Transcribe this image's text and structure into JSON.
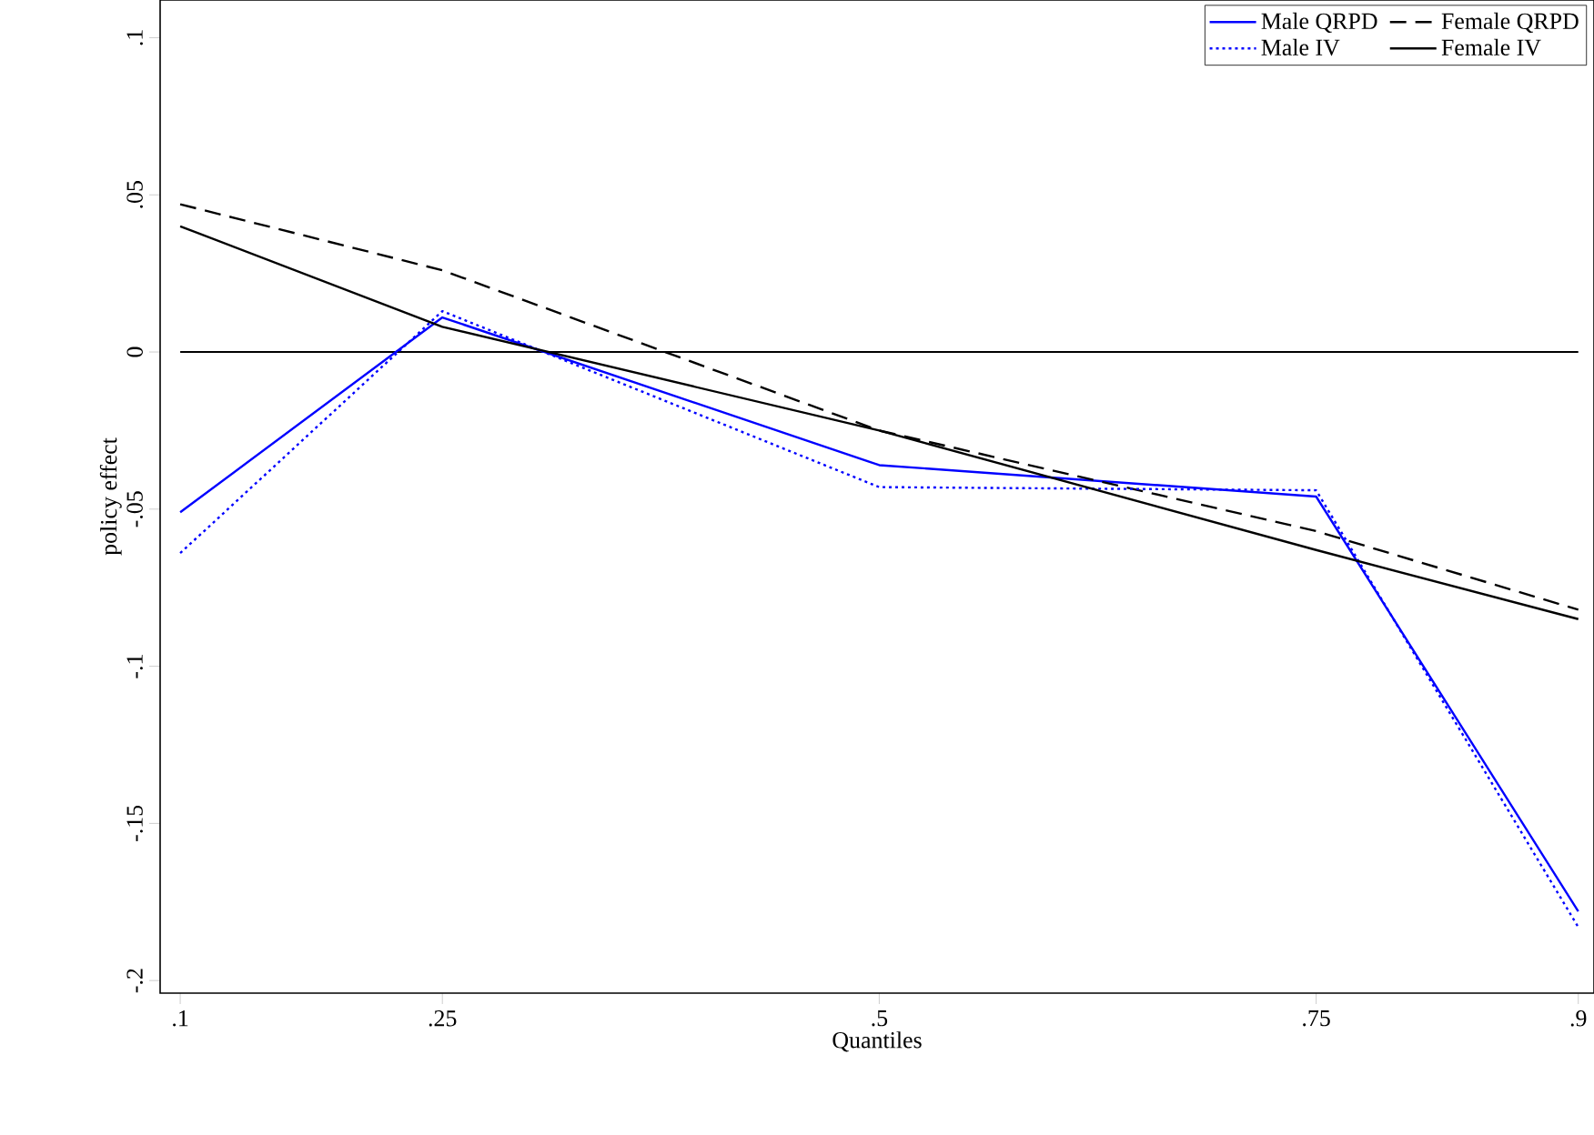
{
  "chart_data": {
    "type": "line",
    "xlabel": "Quantiles",
    "ylabel": "policy effect",
    "xlim": [
      0.0885,
      0.909
    ],
    "ylim": [
      -0.204,
      0.112
    ],
    "xticks": [
      {
        "value": 0.1,
        "label": ".1"
      },
      {
        "value": 0.25,
        "label": ".25"
      },
      {
        "value": 0.5,
        "label": ".5"
      },
      {
        "value": 0.75,
        "label": ".75"
      },
      {
        "value": 0.9,
        "label": ".9"
      }
    ],
    "yticks": [
      {
        "value": -0.2,
        "label": "-.2"
      },
      {
        "value": -0.15,
        "label": "-.15"
      },
      {
        "value": -0.1,
        "label": "-.1"
      },
      {
        "value": -0.05,
        "label": "-.05"
      },
      {
        "value": 0,
        "label": "0"
      },
      {
        "value": 0.05,
        "label": ".05"
      },
      {
        "value": 0.1,
        "label": ".1"
      }
    ],
    "x": [
      0.1,
      0.25,
      0.5,
      0.75,
      0.9
    ],
    "series": [
      {
        "name": "Male QRPD",
        "color": "#0000ff",
        "line_style": "solid",
        "values": [
          -0.051,
          0.011,
          -0.036,
          -0.046,
          -0.178
        ]
      },
      {
        "name": "Female QRPD",
        "color": "#000000",
        "line_style": "dashed",
        "values": [
          0.047,
          0.026,
          -0.025,
          -0.057,
          -0.082
        ]
      },
      {
        "name": "Male IV",
        "color": "#0000ff",
        "line_style": "dotted",
        "values": [
          -0.064,
          0.013,
          -0.043,
          -0.044,
          -0.183
        ]
      },
      {
        "name": "Female IV",
        "color": "#000000",
        "line_style": "solid",
        "values": [
          0.04,
          0.008,
          -0.025,
          -0.063,
          -0.085
        ]
      }
    ],
    "ref_lines": [
      {
        "axis": "y",
        "value": 0,
        "color": "#000000"
      }
    ],
    "legend": "top right",
    "grid": false,
    "marker": "none"
  }
}
